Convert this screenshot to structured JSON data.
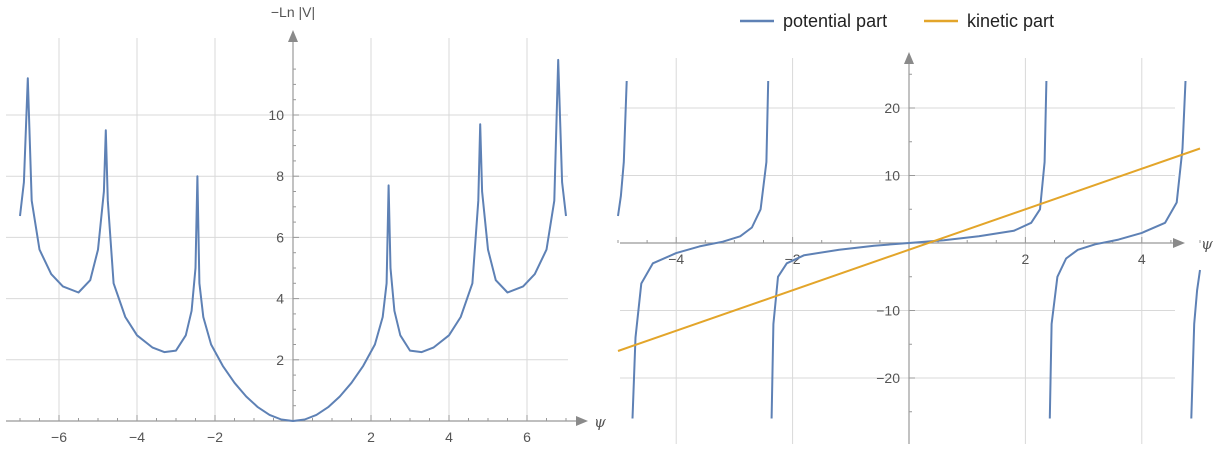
{
  "chart_data": [
    {
      "type": "line",
      "xlabel": "ψ",
      "ylabel": "−Ln |V|",
      "xlim": [
        -7.0,
        7.0
      ],
      "ylim": [
        0,
        11.8
      ],
      "grid": true,
      "x_ticks": [
        -6,
        -4,
        -2,
        2,
        4,
        6
      ],
      "y_ticks": [
        2,
        4,
        6,
        8,
        10
      ],
      "series": [
        {
          "color": "#5e81b5",
          "singularities": [
            -6.8,
            -4.8,
            -2.45,
            2.45,
            4.8,
            6.8
          ],
          "points": [
            [
              -7.0,
              6.7
            ],
            [
              -6.9,
              7.8
            ],
            [
              -6.8,
              11.2
            ],
            [
              -6.7,
              7.2
            ],
            [
              -6.5,
              5.6
            ],
            [
              -6.2,
              4.8
            ],
            [
              -5.9,
              4.4
            ],
            [
              -5.5,
              4.2
            ],
            [
              -5.2,
              4.6
            ],
            [
              -5.0,
              5.6
            ],
            [
              -4.85,
              7.5
            ],
            [
              -4.8,
              9.5
            ],
            [
              -4.75,
              7.2
            ],
            [
              -4.6,
              4.5
            ],
            [
              -4.3,
              3.4
            ],
            [
              -4.0,
              2.8
            ],
            [
              -3.6,
              2.4
            ],
            [
              -3.3,
              2.25
            ],
            [
              -3.0,
              2.3
            ],
            [
              -2.75,
              2.8
            ],
            [
              -2.6,
              3.6
            ],
            [
              -2.5,
              5.0
            ],
            [
              -2.45,
              8.0
            ],
            [
              -2.4,
              4.5
            ],
            [
              -2.3,
              3.4
            ],
            [
              -2.1,
              2.5
            ],
            [
              -1.8,
              1.8
            ],
            [
              -1.5,
              1.25
            ],
            [
              -1.2,
              0.8
            ],
            [
              -0.9,
              0.45
            ],
            [
              -0.6,
              0.2
            ],
            [
              -0.3,
              0.05
            ],
            [
              0.0,
              0.0
            ],
            [
              0.3,
              0.05
            ],
            [
              0.6,
              0.2
            ],
            [
              0.9,
              0.45
            ],
            [
              1.2,
              0.8
            ],
            [
              1.5,
              1.25
            ],
            [
              1.8,
              1.8
            ],
            [
              2.1,
              2.5
            ],
            [
              2.3,
              3.4
            ],
            [
              2.4,
              4.5
            ],
            [
              2.45,
              7.7
            ],
            [
              2.5,
              5.0
            ],
            [
              2.6,
              3.6
            ],
            [
              2.75,
              2.8
            ],
            [
              3.0,
              2.3
            ],
            [
              3.3,
              2.25
            ],
            [
              3.6,
              2.4
            ],
            [
              4.0,
              2.8
            ],
            [
              4.3,
              3.4
            ],
            [
              4.6,
              4.5
            ],
            [
              4.75,
              7.2
            ],
            [
              4.8,
              9.7
            ],
            [
              4.85,
              7.5
            ],
            [
              5.0,
              5.6
            ],
            [
              5.2,
              4.6
            ],
            [
              5.5,
              4.2
            ],
            [
              5.9,
              4.4
            ],
            [
              6.2,
              4.8
            ],
            [
              6.5,
              5.6
            ],
            [
              6.7,
              7.2
            ],
            [
              6.8,
              11.8
            ],
            [
              6.9,
              7.8
            ],
            [
              7.0,
              6.7
            ]
          ]
        }
      ]
    },
    {
      "type": "line",
      "xlabel": "ψ",
      "ylabel": "",
      "xlim": [
        -5.0,
        5.0
      ],
      "ylim": [
        -26,
        24
      ],
      "grid": true,
      "x_ticks": [
        -4,
        -2,
        2,
        4
      ],
      "y_ticks": [
        -20,
        -10,
        10,
        20
      ],
      "legend": {
        "position": "top"
      },
      "series": [
        {
          "name": "potential part",
          "color": "#5e81b5",
          "asymptotes": [
            -4.8,
            -2.4,
            2.4,
            4.8
          ],
          "branches": [
            [
              [
                -5.0,
                4.0
              ],
              [
                -4.95,
                7.0
              ],
              [
                -4.9,
                12.0
              ],
              [
                -4.85,
                24.0
              ]
            ],
            [
              [
                -4.75,
                -26.0
              ],
              [
                -4.7,
                -14.0
              ],
              [
                -4.6,
                -6.0
              ],
              [
                -4.4,
                -3.0
              ],
              [
                -4.0,
                -1.5
              ],
              [
                -3.6,
                -0.5
              ],
              [
                -3.2,
                0.2
              ],
              [
                -2.9,
                1.0
              ],
              [
                -2.7,
                2.3
              ],
              [
                -2.55,
                5.0
              ],
              [
                -2.45,
                12.0
              ],
              [
                -2.42,
                24.0
              ]
            ],
            [
              [
                -2.36,
                -26.0
              ],
              [
                -2.33,
                -12.0
              ],
              [
                -2.25,
                -5.0
              ],
              [
                -2.1,
                -3.0
              ],
              [
                -1.8,
                -1.8
              ],
              [
                -1.2,
                -1.0
              ],
              [
                -0.6,
                -0.4
              ],
              [
                0.0,
                0.0
              ],
              [
                0.6,
                0.4
              ],
              [
                1.2,
                1.0
              ],
              [
                1.8,
                1.8
              ],
              [
                2.1,
                3.0
              ],
              [
                2.25,
                5.0
              ],
              [
                2.33,
                12.0
              ],
              [
                2.36,
                24.0
              ]
            ],
            [
              [
                2.42,
                -26.0
              ],
              [
                2.45,
                -12.0
              ],
              [
                2.55,
                -5.0
              ],
              [
                2.7,
                -2.3
              ],
              [
                2.9,
                -1.0
              ],
              [
                3.2,
                -0.2
              ],
              [
                3.6,
                0.5
              ],
              [
                4.0,
                1.5
              ],
              [
                4.4,
                3.0
              ],
              [
                4.6,
                6.0
              ],
              [
                4.7,
                14.0
              ],
              [
                4.75,
                24.0
              ]
            ],
            [
              [
                4.85,
                -26.0
              ],
              [
                4.9,
                -12.0
              ],
              [
                4.95,
                -7.0
              ],
              [
                5.0,
                -4.0
              ]
            ]
          ]
        },
        {
          "name": "kinetic part",
          "color": "#e3a52a",
          "points": [
            [
              -5.0,
              -16.0
            ],
            [
              5.0,
              14.0
            ]
          ]
        }
      ]
    }
  ]
}
